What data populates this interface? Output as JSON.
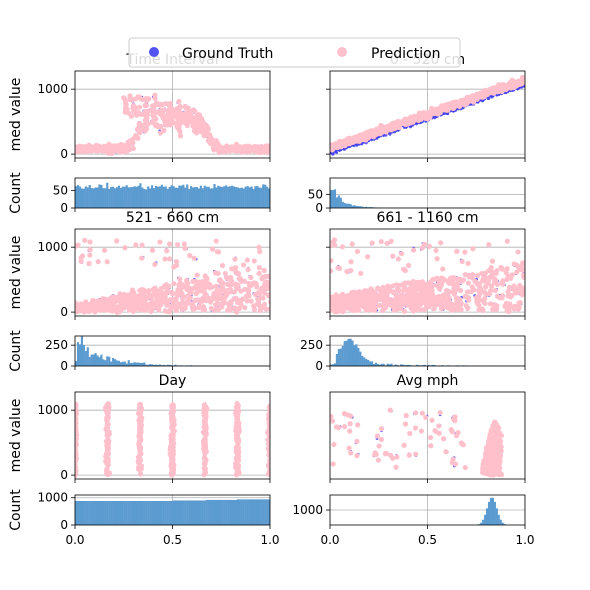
{
  "legend": {
    "placement": "top-center",
    "entries": [
      {
        "label": "Ground Truth",
        "color": "#4040f0"
      },
      {
        "label": "Prediction",
        "color": "#ffc0cb"
      }
    ]
  },
  "colors": {
    "ground_truth": "#4040f0",
    "prediction": "#ffc0cb",
    "histogram": "#5b9bd0",
    "grid": "#b0b0b0"
  },
  "chart_data": [
    {
      "type": "scatter",
      "title": "Time Interval",
      "ylabel": "med value",
      "xlim": [
        0,
        1
      ],
      "ylim": [
        -60,
        1280
      ],
      "yticks": [
        0,
        1000
      ],
      "grid": true,
      "shape": "time",
      "series": [
        {
          "name": "Ground Truth"
        },
        {
          "name": "Prediction"
        }
      ]
    },
    {
      "type": "scatter",
      "title": "0 - 520 cm",
      "ylabel": "",
      "xlim": [
        0,
        1
      ],
      "ylim": [
        -60,
        1280
      ],
      "yticks": [
        0,
        1000
      ],
      "grid": true,
      "shape": "linear",
      "series": [
        {
          "name": "Ground Truth"
        },
        {
          "name": "Prediction"
        }
      ]
    },
    {
      "type": "bar",
      "ylabel": "Count",
      "xlim": [
        0,
        1
      ],
      "ylim": [
        0,
        85
      ],
      "yticks": [
        0,
        50
      ],
      "grid": true,
      "shape": "uniform",
      "level": 60
    },
    {
      "type": "bar",
      "ylabel": "",
      "xlim": [
        0,
        1
      ],
      "ylim": [
        0,
        110
      ],
      "yticks": [
        0,
        50
      ],
      "grid": true,
      "shape": "decay",
      "peak": 95
    },
    {
      "type": "scatter",
      "title": "521  - 660 cm",
      "ylabel": "med value",
      "xlim": [
        0,
        1
      ],
      "ylim": [
        -60,
        1280
      ],
      "yticks": [
        0,
        1000
      ],
      "grid": true,
      "shape": "fan",
      "series": [
        {
          "name": "Ground Truth"
        },
        {
          "name": "Prediction"
        }
      ]
    },
    {
      "type": "scatter",
      "title": "661 - 1160 cm",
      "ylabel": "",
      "xlim": [
        0,
        1
      ],
      "ylim": [
        -60,
        1280
      ],
      "yticks": [
        0,
        1000
      ],
      "grid": true,
      "shape": "fan2",
      "series": [
        {
          "name": "Ground Truth"
        },
        {
          "name": "Prediction"
        }
      ]
    },
    {
      "type": "bar",
      "ylabel": "Count",
      "xlim": [
        0,
        1
      ],
      "ylim": [
        0,
        360
      ],
      "yticks": [
        0,
        250
      ],
      "grid": true,
      "shape": "decay2",
      "peak": 280
    },
    {
      "type": "bar",
      "ylabel": "",
      "xlim": [
        0,
        1
      ],
      "ylim": [
        0,
        360
      ],
      "yticks": [
        0,
        250
      ],
      "grid": true,
      "shape": "hump",
      "peak": 280
    },
    {
      "type": "scatter",
      "title": "Day",
      "ylabel": "med value",
      "xlim": [
        0,
        1
      ],
      "ylim": [
        -60,
        1280
      ],
      "yticks": [
        0,
        1000
      ],
      "grid": true,
      "shape": "days",
      "x_values": [
        0,
        0.1667,
        0.3333,
        0.5,
        0.6667,
        0.8333,
        1.0
      ],
      "series": [
        {
          "name": "Ground Truth"
        },
        {
          "name": "Prediction"
        }
      ]
    },
    {
      "type": "scatter",
      "title": "Avg mph",
      "ylabel": "",
      "xlim": [
        0,
        1
      ],
      "ylim": [
        -60,
        1280
      ],
      "yticks": [],
      "grid": true,
      "shape": "mph",
      "series": [
        {
          "name": "Ground Truth"
        },
        {
          "name": "Prediction"
        }
      ]
    },
    {
      "type": "bar",
      "ylabel": "Count",
      "xlim": [
        0,
        1
      ],
      "ylim": [
        0,
        1100
      ],
      "yticks": [
        0,
        1000
      ],
      "grid": true,
      "shape": "days_hist",
      "x_values": [
        0,
        0.1667,
        0.3333,
        0.5,
        0.6667,
        0.8333,
        1.0
      ],
      "values": [
        880,
        880,
        880,
        900,
        920,
        940,
        960
      ]
    },
    {
      "type": "bar",
      "ylabel": "",
      "xlim": [
        0,
        1
      ],
      "ylim": [
        0,
        2000
      ],
      "yticks": [
        1000
      ],
      "grid": true,
      "shape": "mph_hist",
      "peak": 1850
    }
  ],
  "x_ticks": [
    "0.0",
    "0.5",
    "1.0"
  ]
}
